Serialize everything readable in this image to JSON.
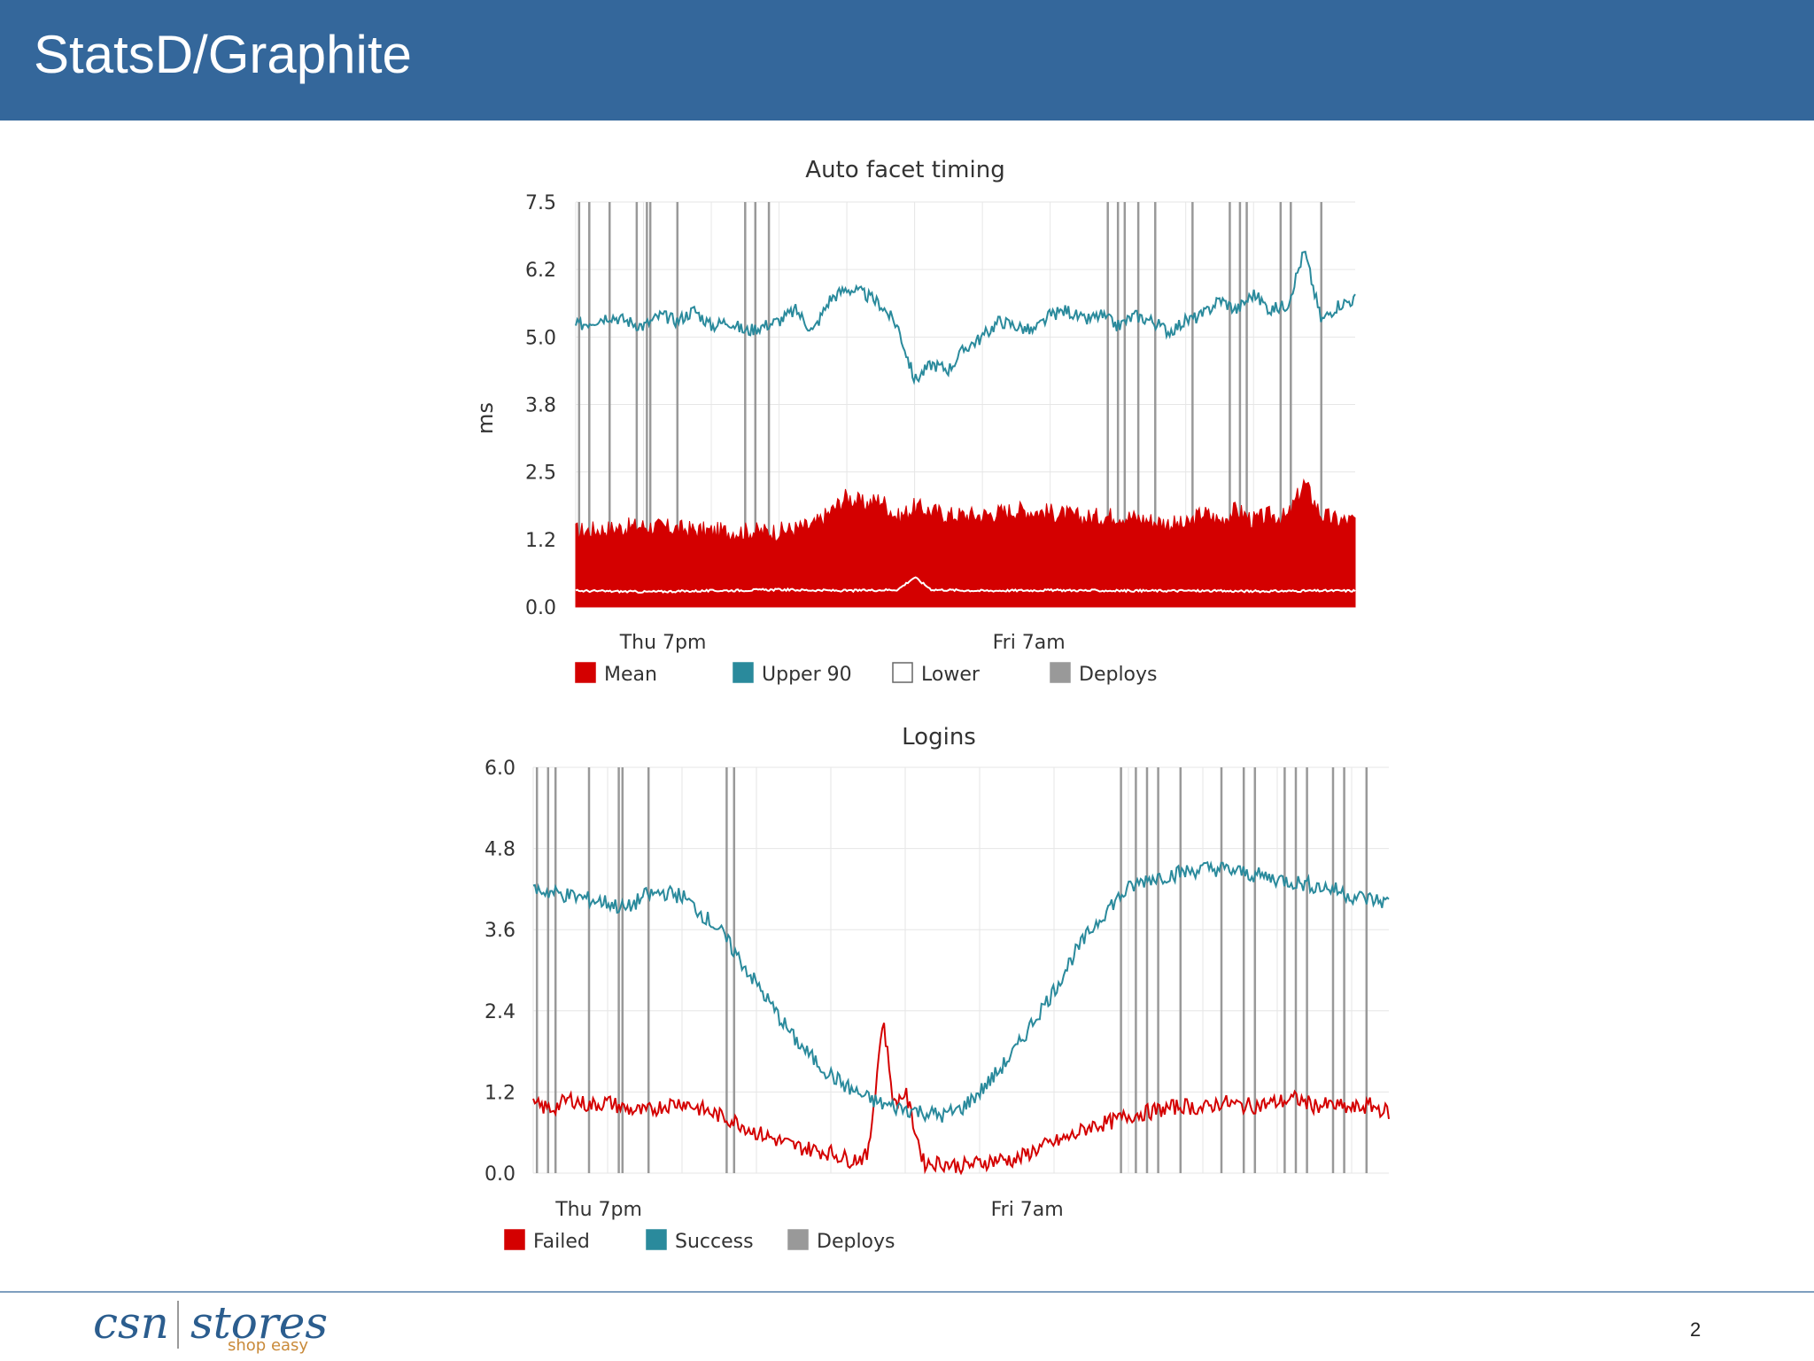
{
  "slide": {
    "title": "StatsD/Graphite",
    "page_number": "2"
  },
  "logo": {
    "brand_left": "csn",
    "brand_right": "stores",
    "tagline": "shop easy"
  },
  "colors": {
    "header_bg": "#34679b",
    "mean": "#d40000",
    "upper90": "#2a8a9c",
    "lower": "#ffffff",
    "deploys": "#999999",
    "failed": "#d40000",
    "success": "#2a8a9c"
  },
  "chart_data": [
    {
      "type": "area",
      "title": "Auto facet timing",
      "ylabel": "ms",
      "xlabel": "",
      "ylim": [
        0,
        7.5
      ],
      "y_ticks": [
        "7.5",
        "6.2",
        "5.0",
        "3.8",
        "2.5",
        "1.2",
        "0.0"
      ],
      "y_tick_values": [
        7.5,
        6.25,
        5.0,
        3.75,
        2.5,
        1.25,
        0.0
      ],
      "x_tick_labels": [
        "Thu  7pm",
        "Fri  7am"
      ],
      "x_range_hours": [
        0,
        23
      ],
      "x_tick_hours": [
        1.3,
        12.3
      ],
      "grid": true,
      "legend_position": "bottom",
      "legend": [
        "Mean",
        "Upper 90",
        "Lower",
        "Deploys"
      ],
      "deploys_hours": [
        0.1,
        0.4,
        1.0,
        1.8,
        2.1,
        2.2,
        3.0,
        5.0,
        5.3,
        5.7,
        15.7,
        16.0,
        16.2,
        16.6,
        17.1,
        18.2,
        19.3,
        19.6,
        19.8,
        20.8,
        21.1,
        22.0
      ],
      "series": [
        {
          "name": "Mean",
          "style": "area",
          "color": "#d40000",
          "x": [
            0,
            1,
            2,
            3,
            4,
            5,
            6,
            7,
            7.5,
            8,
            8.5,
            9,
            9.5,
            10,
            11,
            12,
            13,
            14,
            15,
            16,
            17,
            18,
            18.5,
            19,
            19.5,
            20,
            20.5,
            21,
            21.5,
            22,
            22.5,
            23
          ],
          "y": [
            1.4,
            1.45,
            1.5,
            1.45,
            1.4,
            1.4,
            1.4,
            1.5,
            1.75,
            2.05,
            1.9,
            2.0,
            1.65,
            1.85,
            1.7,
            1.7,
            1.8,
            1.75,
            1.65,
            1.7,
            1.6,
            1.5,
            1.75,
            1.6,
            1.8,
            1.6,
            1.7,
            1.65,
            2.3,
            1.7,
            1.6,
            1.6
          ]
        },
        {
          "name": "Upper 90",
          "style": "line",
          "color": "#2a8a9c",
          "x": [
            0,
            0.5,
            1,
            1.5,
            2,
            2.5,
            3,
            3.5,
            4,
            4.5,
            5,
            5.5,
            6,
            6.5,
            7,
            7.5,
            8,
            8.5,
            9,
            9.5,
            10,
            10.5,
            11,
            11.5,
            12,
            12.5,
            13,
            13.5,
            14,
            14.5,
            15,
            15.5,
            16,
            16.5,
            17,
            17.5,
            18,
            18.5,
            19,
            19.5,
            20,
            20.5,
            21,
            21.5,
            22,
            22.5,
            23
          ],
          "y": [
            5.2,
            5.3,
            5.4,
            5.3,
            5.2,
            5.4,
            5.3,
            5.5,
            5.2,
            5.3,
            5.1,
            5.2,
            5.3,
            5.5,
            5.1,
            5.7,
            5.9,
            5.8,
            5.6,
            5.2,
            4.2,
            4.5,
            4.4,
            4.8,
            5.0,
            5.3,
            5.2,
            5.1,
            5.4,
            5.5,
            5.3,
            5.4,
            5.2,
            5.4,
            5.3,
            5.1,
            5.3,
            5.4,
            5.7,
            5.5,
            5.8,
            5.5,
            5.6,
            6.6,
            5.3,
            5.6,
            5.7
          ]
        },
        {
          "name": "Lower",
          "style": "line",
          "color": "#ffffff",
          "x": [
            0,
            2,
            4,
            6,
            8,
            9.5,
            10,
            10.5,
            12,
            14,
            16,
            18,
            20,
            22,
            23
          ],
          "y": [
            0.3,
            0.28,
            0.3,
            0.32,
            0.3,
            0.32,
            0.55,
            0.32,
            0.3,
            0.31,
            0.3,
            0.3,
            0.29,
            0.3,
            0.3
          ]
        }
      ]
    },
    {
      "type": "line",
      "title": "Logins",
      "xlabel": "",
      "ylabel": "",
      "ylim": [
        0,
        6.0
      ],
      "y_ticks": [
        "6.0",
        "4.8",
        "3.6",
        "2.4",
        "1.2",
        "0.0"
      ],
      "y_tick_values": [
        6.0,
        4.8,
        3.6,
        2.4,
        1.2,
        0.0
      ],
      "x_tick_labels": [
        "Thu  7pm",
        "Fri  7am"
      ],
      "x_range_hours": [
        0,
        23
      ],
      "x_tick_hours": [
        0.6,
        12.3
      ],
      "grid": true,
      "legend_position": "bottom",
      "legend": [
        "Failed",
        "Success",
        "Deploys"
      ],
      "deploys_hours": [
        0.1,
        0.4,
        0.6,
        1.5,
        2.3,
        2.4,
        3.1,
        5.2,
        5.4,
        15.8,
        16.2,
        16.5,
        16.8,
        17.4,
        18.5,
        19.1,
        19.4,
        20.2,
        20.5,
        20.8,
        21.5,
        21.8,
        22.4
      ],
      "series": [
        {
          "name": "Failed",
          "color": "#d40000",
          "x": [
            0,
            0.5,
            1,
            1.5,
            2,
            2.5,
            3,
            3.5,
            4,
            4.5,
            5,
            5.5,
            6,
            6.5,
            7,
            7.5,
            8,
            8.5,
            9,
            9.4,
            9.7,
            10,
            10.5,
            11,
            11.5,
            12,
            12.5,
            13,
            13.5,
            14,
            14.5,
            15,
            15.5,
            16,
            16.5,
            17,
            17.5,
            18,
            18.5,
            19,
            19.5,
            20,
            20.5,
            21,
            21.5,
            22,
            22.5,
            23
          ],
          "y": [
            1.0,
            0.95,
            1.1,
            1.0,
            1.05,
            0.95,
            0.9,
            1.0,
            1.05,
            0.95,
            0.85,
            0.75,
            0.6,
            0.5,
            0.4,
            0.35,
            0.3,
            0.2,
            0.25,
            2.3,
            1.0,
            1.2,
            0.15,
            0.15,
            0.1,
            0.15,
            0.2,
            0.2,
            0.35,
            0.45,
            0.55,
            0.7,
            0.75,
            0.85,
            0.9,
            0.95,
            1.0,
            0.95,
            1.05,
            1.0,
            1.0,
            1.05,
            1.1,
            1.0,
            1.0,
            0.95,
            1.0,
            0.9
          ]
        },
        {
          "name": "Success",
          "color": "#2a8a9c",
          "x": [
            0,
            0.5,
            1,
            1.5,
            2,
            2.5,
            3,
            3.5,
            4,
            4.5,
            5,
            5.5,
            6,
            6.5,
            7,
            7.5,
            8,
            8.5,
            9,
            9.5,
            10,
            10.5,
            11,
            11.5,
            12,
            12.5,
            13,
            13.5,
            14,
            14.5,
            15,
            15.5,
            16,
            16.5,
            17,
            17.5,
            18,
            18.5,
            19,
            19.5,
            20,
            20.5,
            21,
            21.5,
            22,
            22.5,
            23
          ],
          "y": [
            4.2,
            4.15,
            4.1,
            4.05,
            4.0,
            3.9,
            4.1,
            4.15,
            4.1,
            3.85,
            3.6,
            3.2,
            2.8,
            2.4,
            2.0,
            1.7,
            1.45,
            1.25,
            1.1,
            1.0,
            0.95,
            0.9,
            0.85,
            0.95,
            1.2,
            1.5,
            1.85,
            2.3,
            2.7,
            3.2,
            3.6,
            3.95,
            4.2,
            4.35,
            4.4,
            4.45,
            4.5,
            4.5,
            4.45,
            4.4,
            4.35,
            4.3,
            4.25,
            4.2,
            4.1,
            4.05,
            4.0
          ]
        }
      ]
    }
  ]
}
